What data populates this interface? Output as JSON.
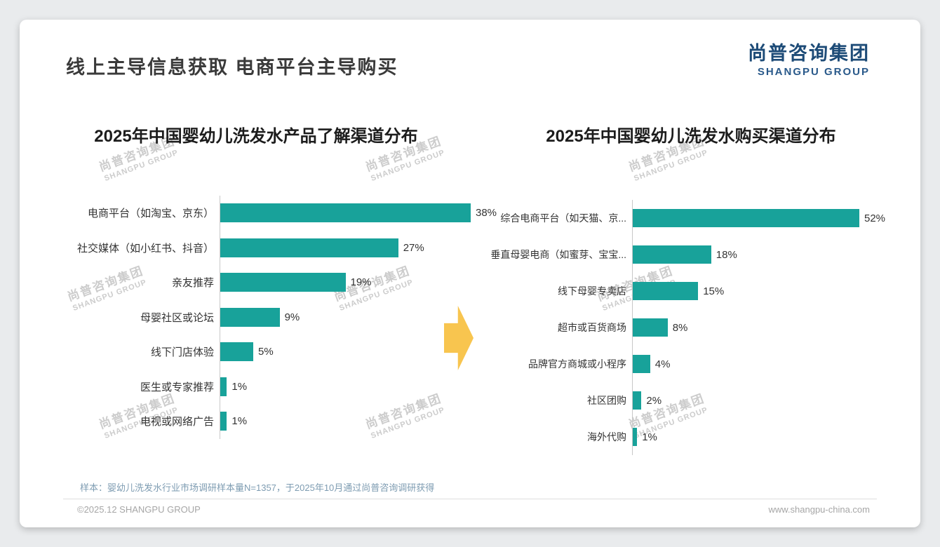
{
  "page": {
    "title": "线上主导信息获取 电商平台主导购买",
    "logo": {
      "cn": "尚普咨询集团",
      "en": "SHANGPU GROUP"
    },
    "watermark": {
      "cn": "尚普咨询集团",
      "en": "SHANGPU GROUP"
    },
    "footer": {
      "note": "样本：婴幼儿洗发水行业市场调研样本量N=1357，于2025年10月通过尚普咨询调研获得",
      "copyright": "©2025.12 SHANGPU GROUP",
      "website": "www.shangpu-china.com"
    },
    "colors": {
      "bar": "#18A29A",
      "arrow": "#F8C54F",
      "logo_blue": "#1D4B77"
    }
  },
  "chart_data": [
    {
      "type": "bar",
      "orientation": "horizontal",
      "title": "2025年中国婴幼儿洗发水产品了解渠道分布",
      "categories": [
        "电商平台（如淘宝、京东）",
        "社交媒体（如小红书、抖音）",
        "亲友推荐",
        "母婴社区或论坛",
        "线下门店体验",
        "医生或专家推荐",
        "电视或网络广告"
      ],
      "values": [
        38,
        27,
        19,
        9,
        5,
        1,
        1
      ],
      "value_labels": [
        "38%",
        "27%",
        "19%",
        "9%",
        "5%",
        "1%",
        "1%"
      ],
      "unit": "%",
      "grid": false,
      "legend": "none",
      "value_labels_position": "end-of-bar"
    },
    {
      "type": "bar",
      "orientation": "horizontal",
      "title": "2025年中国婴幼儿洗发水购买渠道分布",
      "categories": [
        "综合电商平台（如天猫、京...",
        "垂直母婴电商（如蜜芽、宝宝...",
        "线下母婴专卖店",
        "超市或百货商场",
        "品牌官方商城或小程序",
        "社区团购",
        "海外代购"
      ],
      "values": [
        52,
        18,
        15,
        8,
        4,
        2,
        1
      ],
      "value_labels": [
        "52%",
        "18%",
        "15%",
        "8%",
        "4%",
        "2%",
        "1%"
      ],
      "unit": "%",
      "grid": false,
      "legend": "none",
      "value_labels_position": "end-of-bar"
    }
  ]
}
